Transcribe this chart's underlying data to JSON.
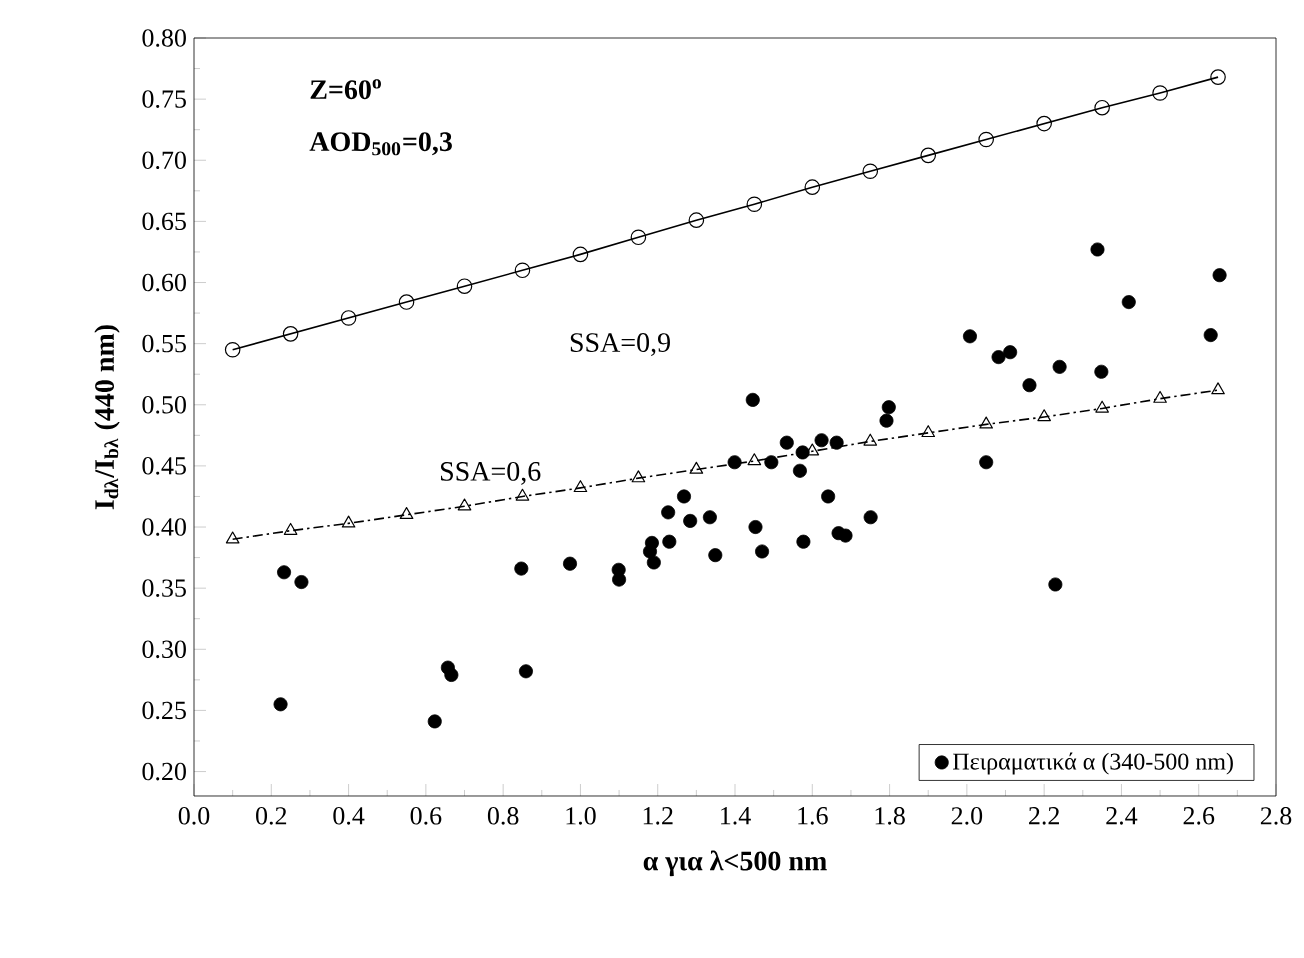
{
  "chart_data": {
    "type": "scatter",
    "xlabel": "α για λ<500 nm",
    "ylabel": "I$_{dλ}$/I$_{bλ}$ (440 nm)",
    "annotations": [
      "Z=60$^{o}$",
      "AOD$_{500}$=0,3",
      "SSA=0,9",
      "SSA=0,6"
    ],
    "xlim": [
      0,
      2.8
    ],
    "ylim": [
      0.18,
      0.8
    ],
    "xticks": [
      {
        "value": 0,
        "label": "0.0"
      },
      0.2,
      0.4,
      0.6,
      0.8,
      {
        "value": 1,
        "label": "1.0"
      },
      1.2,
      1.4,
      1.6,
      1.8,
      {
        "value": 2,
        "label": "2.0"
      },
      2.2,
      2.4,
      2.6,
      2.8
    ],
    "yticks": [
      {
        "value": 0.2,
        "label": "0.20"
      },
      0.25,
      {
        "value": 0.3,
        "label": "0.30"
      },
      0.35,
      {
        "value": 0.4,
        "label": "0.40"
      },
      0.45,
      {
        "value": 0.5,
        "label": "0.50"
      },
      0.55,
      {
        "value": 0.6,
        "label": "0.60"
      },
      0.65,
      {
        "value": 0.7,
        "label": "0.70"
      },
      0.75,
      {
        "value": 0.8,
        "label": "0.80"
      }
    ],
    "grid": false,
    "legend": "bottom right",
    "series": [
      {
        "name": "Πειραματικά α (340-500 nm)",
        "marker": "circle",
        "color": "#000000",
        "x": [
          0.233,
          0.278,
          0.224,
          0.623,
          0.657,
          0.666,
          0.847,
          0.859,
          0.973,
          1.099,
          1.1,
          1.18,
          1.19,
          1.185,
          1.23,
          1.227,
          1.268,
          1.284,
          1.335,
          1.349,
          1.399,
          1.446,
          1.453,
          1.47,
          1.494,
          1.534,
          1.575,
          1.568,
          1.577,
          1.624,
          1.663,
          1.641,
          1.668,
          1.686,
          1.751,
          1.798,
          1.792,
          2.008,
          2.05,
          2.082,
          2.112,
          2.162,
          2.24,
          2.229,
          2.338,
          2.348,
          2.419,
          2.631,
          2.654
        ],
        "values": [
          0.363,
          0.355,
          0.255,
          0.241,
          0.285,
          0.279,
          0.366,
          0.282,
          0.37,
          0.365,
          0.357,
          0.38,
          0.371,
          0.387,
          0.388,
          0.412,
          0.425,
          0.405,
          0.408,
          0.377,
          0.453,
          0.504,
          0.4,
          0.38,
          0.453,
          0.469,
          0.461,
          0.446,
          0.388,
          0.471,
          0.469,
          0.425,
          0.395,
          0.393,
          0.408,
          0.498,
          0.487,
          0.556,
          0.453,
          0.539,
          0.543,
          0.516,
          0.531,
          0.353,
          0.627,
          0.527,
          0.584,
          0.557,
          0.606
        ]
      },
      {
        "type": "line",
        "marker": "circle",
        "line_style": "solid",
        "color": "#000000",
        "x": [
          0.1,
          0.25,
          0.4,
          0.55,
          0.7,
          0.85,
          1.0,
          1.15,
          1.3,
          1.45,
          1.6,
          1.75,
          1.9,
          2.05,
          2.2,
          2.35,
          2.5,
          2.65
        ],
        "values": [
          0.545,
          0.558,
          0.571,
          0.584,
          0.597,
          0.61,
          0.623,
          0.637,
          0.651,
          0.664,
          0.678,
          0.691,
          0.704,
          0.717,
          0.73,
          0.743,
          0.755,
          0.768
        ]
      },
      {
        "type": "line",
        "marker": "triangle",
        "line_style": "dashed",
        "color": "#000000",
        "x": [
          0.1,
          0.25,
          0.4,
          0.55,
          0.7,
          0.85,
          1.0,
          1.15,
          1.3,
          1.45,
          1.6,
          1.75,
          1.9,
          2.05,
          2.2,
          2.35,
          2.5,
          2.65
        ],
        "values": [
          0.39,
          0.397,
          0.403,
          0.41,
          0.417,
          0.425,
          0.432,
          0.44,
          0.447,
          0.454,
          0.462,
          0.47,
          0.477,
          0.484,
          0.49,
          0.497,
          0.505,
          0.512
        ]
      }
    ]
  }
}
